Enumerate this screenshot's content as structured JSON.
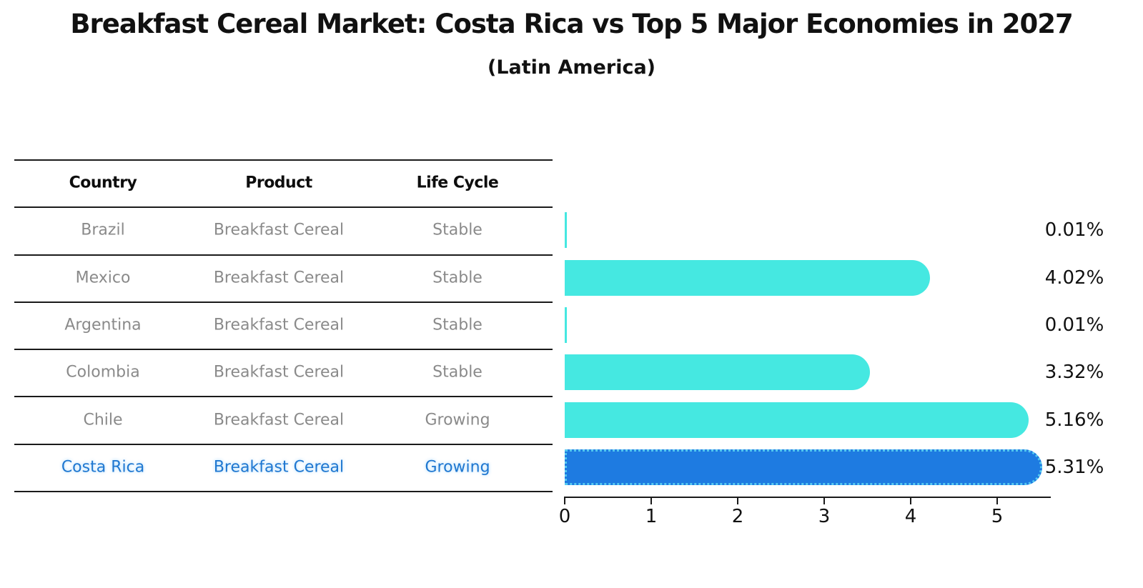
{
  "title": "Breakfast Cereal Market: Costa Rica vs Top 5 Major Economies in 2027",
  "subtitle": "(Latin America)",
  "table": {
    "columns": [
      "Country",
      "Product",
      "Life Cycle"
    ],
    "rows": [
      {
        "country": "Brazil",
        "product": "Breakfast Cereal",
        "life_cycle": "Stable",
        "value": 0.01,
        "value_label": "0.01%",
        "highlight": false
      },
      {
        "country": "Mexico",
        "product": "Breakfast Cereal",
        "life_cycle": "Stable",
        "value": 4.02,
        "value_label": "4.02%",
        "highlight": false
      },
      {
        "country": "Argentina",
        "product": "Breakfast Cereal",
        "life_cycle": "Stable",
        "value": 0.01,
        "value_label": "0.01%",
        "highlight": false
      },
      {
        "country": "Colombia",
        "product": "Breakfast Cereal",
        "life_cycle": "Stable",
        "value": 3.32,
        "value_label": "3.32%",
        "highlight": false
      },
      {
        "country": "Chile",
        "product": "Breakfast Cereal",
        "life_cycle": "Growing",
        "value": 5.16,
        "value_label": "5.16%",
        "highlight": false
      },
      {
        "country": "Costa Rica",
        "product": "Breakfast Cereal",
        "life_cycle": "Growing",
        "value": 5.31,
        "value_label": "5.31%",
        "highlight": true
      }
    ]
  },
  "chart_data": {
    "type": "bar",
    "orientation": "horizontal",
    "title": "Breakfast Cereal Market: Costa Rica vs Top 5 Major Economies in 2027",
    "subtitle": "(Latin America)",
    "categories": [
      "Brazil",
      "Mexico",
      "Argentina",
      "Colombia",
      "Chile",
      "Costa Rica"
    ],
    "values": [
      0.01,
      4.02,
      0.01,
      3.32,
      5.16,
      5.31
    ],
    "value_labels": [
      "0.01%",
      "4.02%",
      "0.01%",
      "3.32%",
      "5.16%",
      "5.31%"
    ],
    "x_ticks": [
      "0",
      "1",
      "2",
      "3",
      "4",
      "5"
    ],
    "xlim": [
      0,
      5.6
    ],
    "grid": false,
    "legend": "none",
    "bar_color": "#45E8E1",
    "highlight_bar_color": "#1E7BE1",
    "highlight_border_color": "#55C9F0",
    "highlight_index": 5,
    "text_color_muted": "#8A8A8A",
    "text_color_highlight": "#1F77D0"
  }
}
